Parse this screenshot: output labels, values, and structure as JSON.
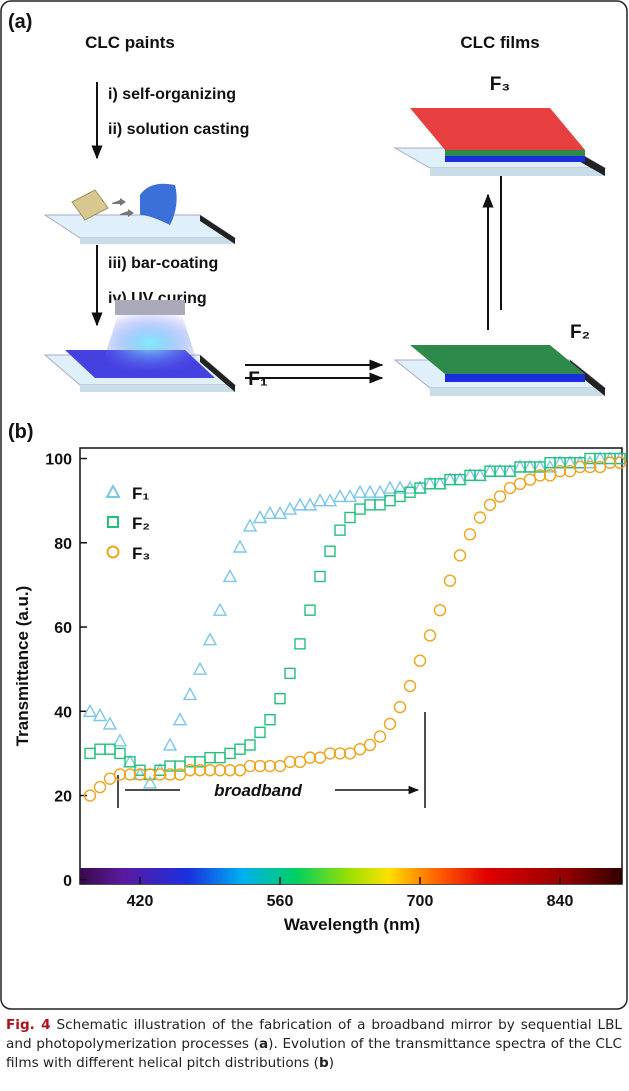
{
  "panel_a": {
    "label": "(a)",
    "paints_title": "CLC paints",
    "step_1": "i) self-organizing",
    "step_2": "ii) solution casting",
    "step_3": "iii) bar-coating",
    "step_4": "iv) UV curing",
    "films_title": "CLC films",
    "film_1": "F₁",
    "film_2": "F₂",
    "film_3": "F₃"
  },
  "chart_data": {
    "type": "scatter",
    "panel_label": "(b)",
    "x_label": "Wavelength (nm)",
    "y_label": "Transmittance (a.u.)",
    "annotation": "broadband",
    "xlim": [
      360,
      902
    ],
    "ylim": [
      -1,
      102.5
    ],
    "xticks": [
      420,
      560,
      700,
      840
    ],
    "yticks": [
      0,
      20,
      40,
      60,
      80,
      100
    ],
    "x": [
      370,
      380,
      390,
      400,
      410,
      420,
      430,
      440,
      450,
      460,
      470,
      480,
      490,
      500,
      510,
      520,
      530,
      540,
      550,
      560,
      570,
      580,
      590,
      600,
      610,
      620,
      630,
      640,
      650,
      660,
      670,
      680,
      690,
      700,
      710,
      720,
      730,
      740,
      750,
      760,
      770,
      780,
      790,
      800,
      810,
      820,
      830,
      840,
      850,
      860,
      870,
      880,
      890,
      900
    ],
    "series": [
      {
        "name": "F₁",
        "color": "#7cc6ea",
        "marker": "triangle",
        "values": [
          40,
          39,
          37,
          33,
          28,
          25,
          23,
          26,
          32,
          38,
          44,
          50,
          57,
          64,
          72,
          79,
          84,
          86,
          87,
          87,
          88,
          89,
          89,
          90,
          90,
          91,
          91,
          92,
          92,
          92,
          93,
          93,
          93,
          93,
          94,
          94,
          95,
          95,
          96,
          96,
          97,
          97,
          97,
          98,
          98,
          98,
          98,
          99,
          99,
          99,
          99,
          100,
          100,
          100
        ]
      },
      {
        "name": "F₂",
        "color": "#22c07a",
        "marker": "square",
        "values": [
          30,
          31,
          31,
          30,
          28,
          26,
          25,
          26,
          27,
          27,
          28,
          28,
          29,
          29,
          30,
          31,
          32,
          35,
          38,
          43,
          49,
          56,
          64,
          72,
          78,
          83,
          86,
          88,
          89,
          89,
          90,
          91,
          92,
          93,
          94,
          94,
          95,
          95,
          96,
          96,
          97,
          97,
          97,
          98,
          98,
          98,
          99,
          99,
          99,
          99,
          100,
          100,
          100,
          100
        ]
      },
      {
        "name": "F₃",
        "color": "#eda41e",
        "marker": "circle",
        "values": [
          20,
          22,
          24,
          25,
          25,
          25,
          25,
          25,
          25,
          25,
          26,
          26,
          26,
          26,
          26,
          26,
          27,
          27,
          27,
          27,
          28,
          28,
          29,
          29,
          30,
          30,
          30,
          31,
          32,
          34,
          37,
          41,
          46,
          52,
          58,
          64,
          71,
          77,
          82,
          86,
          89,
          91,
          93,
          94,
          95,
          96,
          96,
          97,
          97,
          98,
          98,
          98,
          99,
          99
        ]
      }
    ]
  },
  "caption": {
    "label": "Fig. 4",
    "text_1": " Schematic illustration of the fabrication of a broadband mirror by sequential LBL and photopolymerization processes (",
    "ref_a": "a",
    "text_2": "). Evolution of the transmittance spectra of the CLC films with different helical pitch distributions (",
    "ref_b": "b",
    "text_3": ")"
  }
}
